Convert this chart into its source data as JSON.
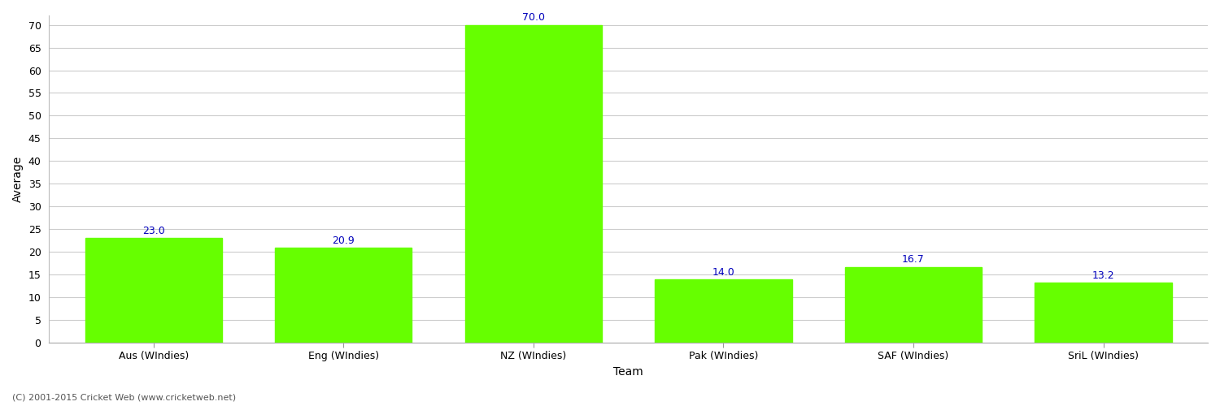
{
  "categories": [
    "Aus (WIndies)",
    "Eng (WIndies)",
    "NZ (WIndies)",
    "Pak (WIndies)",
    "SAF (WIndies)",
    "SriL (WIndies)"
  ],
  "values": [
    23.0,
    20.9,
    70.0,
    14.0,
    16.7,
    13.2
  ],
  "bar_color": "#66ff00",
  "bar_edge_color": "#66ff00",
  "xlabel": "Team",
  "ylabel": "Average",
  "ylim": [
    0,
    72
  ],
  "yticks": [
    0,
    5,
    10,
    15,
    20,
    25,
    30,
    35,
    40,
    45,
    50,
    55,
    60,
    65,
    70
  ],
  "label_color": "#0000bb",
  "label_fontsize": 9,
  "axis_label_fontsize": 10,
  "tick_fontsize": 9,
  "grid_color": "#cccccc",
  "bg_color": "#ffffff",
  "footer_text": "(C) 2001-2015 Cricket Web (www.cricketweb.net)",
  "footer_fontsize": 8,
  "footer_color": "#555555"
}
